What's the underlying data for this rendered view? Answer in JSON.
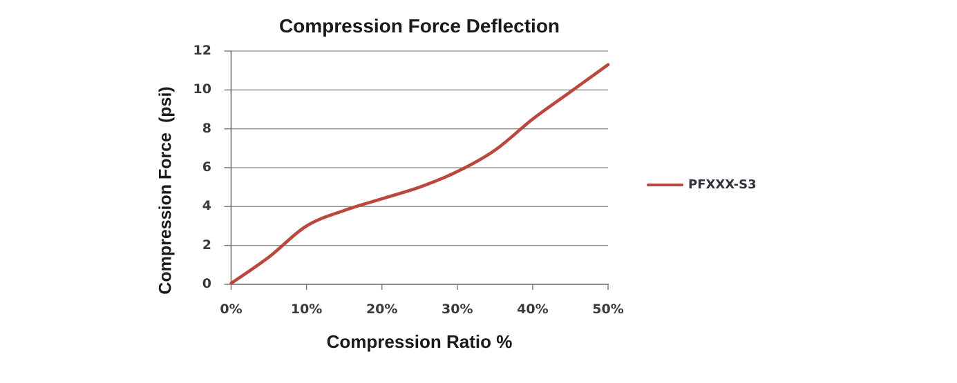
{
  "chart_data": {
    "type": "line",
    "title": "Compression Force Deflection",
    "xlabel": "Compression Ratio %",
    "ylabel": "Compression Force  (psi)",
    "x_percent": [
      0,
      5,
      10,
      15,
      20,
      25,
      30,
      35,
      40,
      45,
      50
    ],
    "series": [
      {
        "name": "PFXXX-S3",
        "values": [
          0.05,
          1.4,
          3.0,
          3.8,
          4.4,
          5.0,
          5.8,
          6.9,
          8.5,
          9.9,
          11.3
        ]
      }
    ],
    "xtick_labels": [
      "0%",
      "10%",
      "20%",
      "30%",
      "40%",
      "50%"
    ],
    "xtick_values": [
      0,
      10,
      20,
      30,
      40,
      50
    ],
    "ytick_labels": [
      "0",
      "2",
      "4",
      "6",
      "8",
      "10",
      "12"
    ],
    "ytick_values": [
      0,
      2,
      4,
      6,
      8,
      10,
      12
    ],
    "xlim": [
      0,
      50
    ],
    "ylim": [
      0,
      12
    ],
    "grid": "horizontal",
    "legend_position": "right",
    "colors": {
      "line": "#b9483e",
      "grid": "#8c8886",
      "axis": "#7f7b78",
      "tick_text": "#3e3840",
      "title_text": "#1a1a1a",
      "legend_text": "#32323e"
    }
  }
}
